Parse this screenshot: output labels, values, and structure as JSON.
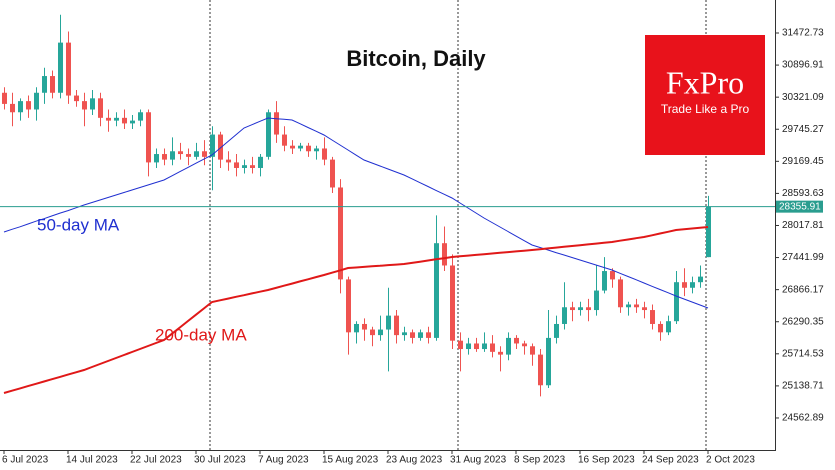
{
  "chart_data": {
    "type": "candlestick",
    "title": "Bitcoin, Daily",
    "categories": [
      "6 Jul 2023",
      null,
      null,
      null,
      null,
      null,
      null,
      null,
      "14 Jul 2023",
      null,
      null,
      null,
      null,
      null,
      null,
      null,
      "22 Jul 2023",
      null,
      null,
      null,
      null,
      null,
      null,
      null,
      "30 Jul 2023",
      null,
      null,
      null,
      null,
      null,
      null,
      null,
      "7 Aug 2023",
      null,
      null,
      null,
      null,
      null,
      null,
      null,
      "15 Aug 2023",
      null,
      null,
      null,
      null,
      null,
      null,
      null,
      "23 Aug 2023",
      null,
      null,
      null,
      null,
      null,
      null,
      null,
      "31 Aug 2023",
      null,
      null,
      null,
      null,
      null,
      null,
      null,
      "8 Sep 2023",
      null,
      null,
      null,
      null,
      null,
      null,
      null,
      "16 Sep 2023",
      null,
      null,
      null,
      null,
      null,
      null,
      null,
      "24 Sep 2023",
      null,
      null,
      null,
      null,
      null,
      null,
      null,
      "2 Oct 2023"
    ],
    "ohlc": [
      [
        30400,
        30500,
        30100,
        30200
      ],
      [
        30200,
        30400,
        29800,
        30050
      ],
      [
        30050,
        30300,
        29900,
        30250
      ],
      [
        30250,
        30350,
        29950,
        30100
      ],
      [
        30100,
        30500,
        29900,
        30400
      ],
      [
        30400,
        30850,
        30200,
        30700
      ],
      [
        30700,
        30800,
        30300,
        30400
      ],
      [
        30400,
        31800,
        30300,
        31300
      ],
      [
        31300,
        31500,
        30200,
        30350
      ],
      [
        30350,
        30450,
        30150,
        30250
      ],
      [
        30250,
        30400,
        29800,
        30100
      ],
      [
        30100,
        30450,
        30000,
        30300
      ],
      [
        30300,
        30400,
        29800,
        29950
      ],
      [
        29950,
        30100,
        29700,
        29900
      ],
      [
        29900,
        30050,
        29800,
        29950
      ],
      [
        29950,
        30100,
        29750,
        29850
      ],
      [
        29850,
        30000,
        29750,
        29900
      ],
      [
        29900,
        30100,
        29800,
        30050
      ],
      [
        30050,
        30100,
        28900,
        29150
      ],
      [
        29150,
        29400,
        29050,
        29300
      ],
      [
        29300,
        29400,
        29100,
        29200
      ],
      [
        29200,
        29600,
        29100,
        29350
      ],
      [
        29350,
        29500,
        29200,
        29300
      ],
      [
        29300,
        29400,
        29100,
        29250
      ],
      [
        29250,
        29500,
        29200,
        29350
      ],
      [
        29350,
        29550,
        29100,
        29250
      ],
      [
        29250,
        29800,
        28650,
        29650
      ],
      [
        29650,
        29700,
        29050,
        29200
      ],
      [
        29200,
        29350,
        29000,
        29150
      ],
      [
        29150,
        29300,
        28900,
        29050
      ],
      [
        29050,
        29200,
        28950,
        29100
      ],
      [
        29100,
        29250,
        28950,
        29050
      ],
      [
        29050,
        29300,
        28900,
        29250
      ],
      [
        29250,
        30100,
        29200,
        30050
      ],
      [
        30050,
        30250,
        29500,
        29650
      ],
      [
        29650,
        29800,
        29350,
        29450
      ],
      [
        29450,
        29550,
        29300,
        29400
      ],
      [
        29400,
        29500,
        29350,
        29450
      ],
      [
        29450,
        29500,
        29250,
        29350
      ],
      [
        29350,
        29450,
        29200,
        29400
      ],
      [
        29400,
        29600,
        29100,
        29200
      ],
      [
        29200,
        29250,
        28600,
        28700
      ],
      [
        28700,
        28850,
        26800,
        27050
      ],
      [
        27050,
        27100,
        25700,
        26100
      ],
      [
        26100,
        26300,
        25900,
        26250
      ],
      [
        26250,
        26350,
        25950,
        26150
      ],
      [
        26150,
        26200,
        25850,
        26050
      ],
      [
        26050,
        26400,
        25950,
        26150
      ],
      [
        26150,
        26900,
        25400,
        26400
      ],
      [
        26400,
        26500,
        25900,
        26050
      ],
      [
        26050,
        26200,
        25950,
        26100
      ],
      [
        26100,
        26150,
        25900,
        26000
      ],
      [
        26000,
        26150,
        25950,
        26100
      ],
      [
        26100,
        26200,
        25900,
        26000
      ],
      [
        26000,
        28200,
        25950,
        27700
      ],
      [
        27700,
        28000,
        27200,
        27300
      ],
      [
        27300,
        27500,
        25800,
        25950
      ],
      [
        25950,
        26100,
        25400,
        25800
      ],
      [
        25800,
        26000,
        25700,
        25900
      ],
      [
        25900,
        26000,
        25750,
        25800
      ],
      [
        25800,
        26100,
        25750,
        25900
      ],
      [
        25900,
        26050,
        25650,
        25750
      ],
      [
        25750,
        25850,
        25400,
        25700
      ],
      [
        25700,
        26100,
        25600,
        26000
      ],
      [
        26000,
        26050,
        25800,
        25900
      ],
      [
        25900,
        25950,
        25700,
        25850
      ],
      [
        25850,
        25900,
        25500,
        25700
      ],
      [
        25700,
        25800,
        24950,
        25150
      ],
      [
        25150,
        26500,
        25100,
        26000
      ],
      [
        26000,
        26400,
        25900,
        26250
      ],
      [
        26250,
        27000,
        26150,
        26550
      ],
      [
        26550,
        26650,
        26300,
        26500
      ],
      [
        26500,
        26650,
        26400,
        26550
      ],
      [
        26550,
        26700,
        26300,
        26500
      ],
      [
        26500,
        27300,
        26400,
        26850
      ],
      [
        26850,
        27450,
        26800,
        27200
      ],
      [
        27200,
        27250,
        26900,
        27050
      ],
      [
        27050,
        27100,
        26450,
        26550
      ],
      [
        26550,
        26650,
        26400,
        26600
      ],
      [
        26600,
        26700,
        26450,
        26550
      ],
      [
        26550,
        26650,
        26350,
        26500
      ],
      [
        26500,
        26600,
        26150,
        26250
      ],
      [
        26250,
        26300,
        25950,
        26100
      ],
      [
        26100,
        26400,
        26050,
        26300
      ],
      [
        26300,
        27200,
        26250,
        27000
      ],
      [
        27000,
        27250,
        26750,
        26900
      ],
      [
        26900,
        27100,
        26800,
        27000
      ],
      [
        27000,
        27300,
        26900,
        27100
      ],
      [
        27450,
        28550,
        27450,
        28355.91
      ]
    ],
    "up_color": "#26a69a",
    "down_color": "#ef5350",
    "lines": [
      {
        "name": "50-day MA",
        "color": "#1f2fd0",
        "values": [
          27900,
          27950,
          27995,
          28045,
          28095,
          28140,
          28190,
          28240,
          28285,
          28335,
          28385,
          28430,
          28475,
          28520,
          28565,
          28610,
          28655,
          28700,
          28745,
          28790,
          28834,
          28910,
          28985,
          29060,
          29135,
          29210,
          29283,
          29405,
          29525,
          29645,
          29767,
          29827,
          29887,
          29947,
          29935,
          29923,
          29911,
          29844,
          29777,
          29710,
          29642,
          29552,
          29462,
          29372,
          29282,
          29193,
          29139,
          29085,
          29031,
          28977,
          28924,
          28855,
          28786,
          28717,
          28648,
          28580,
          28511,
          28421,
          28331,
          28241,
          28152,
          28071,
          27990,
          27909,
          27828,
          27747,
          27667,
          27622,
          27577,
          27532,
          27488,
          27443,
          27398,
          27353,
          27308,
          27263,
          27218,
          27160,
          27102,
          27044,
          26985,
          26927,
          26869,
          26811,
          26752,
          26698,
          26644,
          26590,
          26537
        ]
      },
      {
        "name": "200-day MA",
        "color": "#e01818",
        "values": [
          25011,
          25052,
          25094,
          25135,
          25176,
          25218,
          25259,
          25300,
          25341,
          25383,
          25424,
          25478,
          25532,
          25585,
          25639,
          25693,
          25747,
          25801,
          25854,
          25908,
          25962,
          26076,
          26189,
          26303,
          26417,
          26530,
          26644,
          26675,
          26706,
          26737,
          26767,
          26798,
          26829,
          26860,
          26898,
          26937,
          26975,
          27014,
          27052,
          27091,
          27129,
          27171,
          27212,
          27254,
          27264,
          27275,
          27285,
          27295,
          27306,
          27316,
          27326,
          27347,
          27368,
          27389,
          27410,
          27431,
          27452,
          27465,
          27477,
          27490,
          27502,
          27515,
          27528,
          27540,
          27553,
          27565,
          27578,
          27592,
          27607,
          27621,
          27635,
          27650,
          27664,
          27678,
          27692,
          27707,
          27721,
          27744,
          27766,
          27789,
          27811,
          27842,
          27874,
          27905,
          27936,
          27950,
          27963,
          27977,
          27990
        ]
      }
    ],
    "last_price": 28355.91,
    "last_price_color": "#2a9d8f",
    "ylim": [
      23988,
      32065
    ],
    "yticks": [
      31472.73,
      30896.91,
      30321.09,
      29745.27,
      29169.45,
      28593.63,
      28017.81,
      27441.99,
      26866.17,
      26290.35,
      25714.53,
      25138.71,
      24562.89
    ]
  },
  "logo": {
    "name": "FxPro",
    "tagline": "Trade Like a Pro"
  }
}
